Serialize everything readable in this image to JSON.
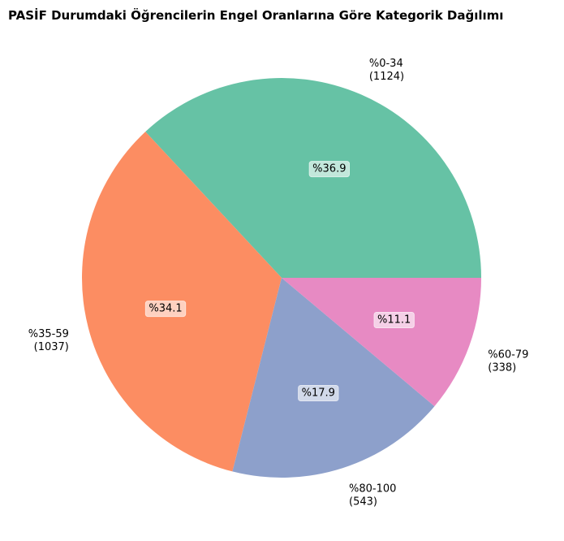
{
  "chart_data": {
    "type": "pie",
    "title": "PASİF Durumdaki Öğrencilerin Engel Oranlarına Göre Kategorik Dağılımı",
    "slices": [
      {
        "label": "%0-34",
        "count": "(1124)",
        "value": 1124,
        "percent_label": "%36.9",
        "color": "#66c2a5"
      },
      {
        "label": "%35-59",
        "count": "(1037)",
        "value": 1037,
        "percent_label": "%34.1",
        "color": "#fc8d62"
      },
      {
        "label": "%80-100",
        "count": "(543)",
        "value": 543,
        "percent_label": "%17.9",
        "color": "#8da0cb"
      },
      {
        "label": "%60-79",
        "count": "(338)",
        "value": 338,
        "percent_label": "%11.1",
        "color": "#e78ac3"
      }
    ],
    "start_angle": 0,
    "direction": "counterclockwise"
  }
}
